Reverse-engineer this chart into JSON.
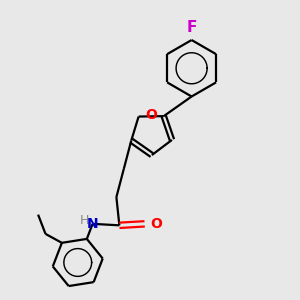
{
  "bg_color": "#e8e8e8",
  "bond_color": "#000000",
  "O_color": "#ff0000",
  "N_color": "#0000cc",
  "F_color": "#cc00cc",
  "H_color": "#888888",
  "line_width": 1.6,
  "fig_size": [
    3.0,
    3.0
  ],
  "dpi": 100,
  "xlim": [
    0,
    10
  ],
  "ylim": [
    0,
    10
  ]
}
